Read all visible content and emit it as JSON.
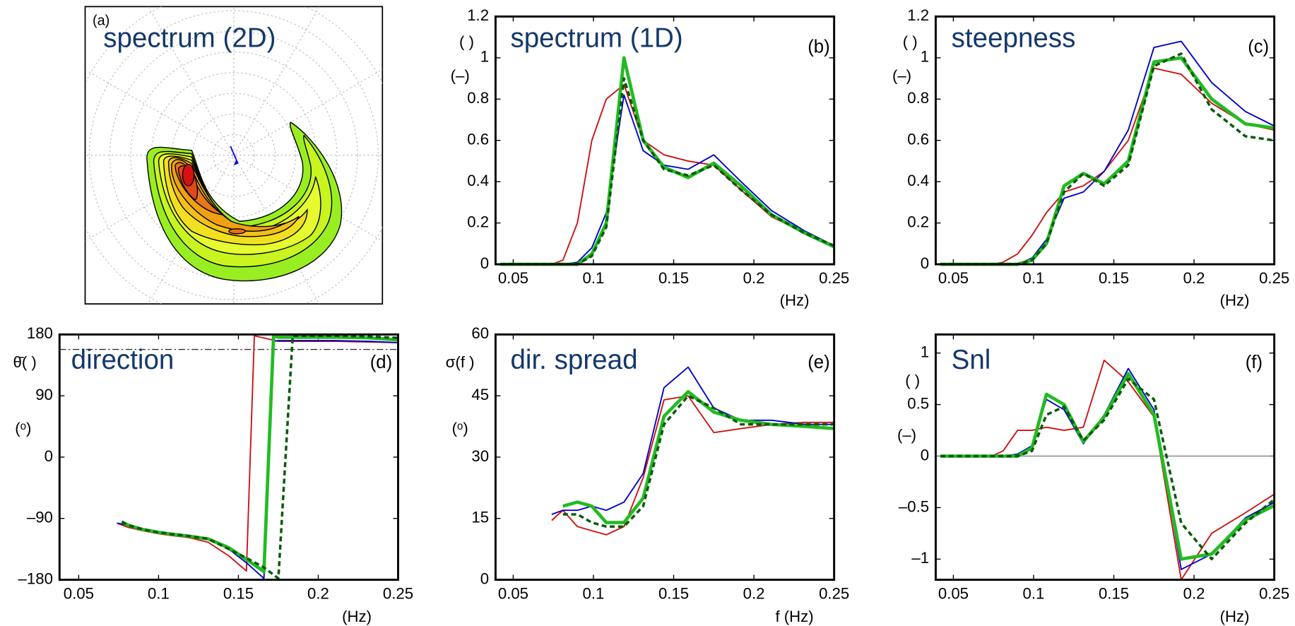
{
  "chart_data": [
    {
      "type": "contour",
      "title": "spectrum (2D)",
      "label": "(a)"
    },
    {
      "type": "line",
      "title": "spectrum (1D)",
      "annotation": "(b)",
      "ylabel": [
        "( )",
        "(–)"
      ],
      "xlabel": "(Hz)",
      "xlim": [
        0.039,
        0.25
      ],
      "xticks": [
        0.05,
        0.1,
        0.15,
        0.2,
        0.25
      ],
      "ylim": [
        0,
        1.2
      ],
      "yticks": [
        0,
        0.2,
        0.4,
        0.6,
        0.8,
        1,
        1.2
      ],
      "x": [
        0.042,
        0.046,
        0.051,
        0.056,
        0.061,
        0.067,
        0.074,
        0.081,
        0.09,
        0.099,
        0.108,
        0.119,
        0.131,
        0.144,
        0.159,
        0.175,
        0.192,
        0.211,
        0.232,
        0.25
      ],
      "series": [
        {
          "color": "#cc1111",
          "linewidth": 1.6,
          "linestyle": "solid",
          "values": [
            0,
            0,
            0,
            0,
            0,
            0,
            0,
            0.02,
            0.2,
            0.6,
            0.8,
            0.87,
            0.6,
            0.53,
            0.5,
            0.48,
            0.36,
            0.23,
            0.15,
            0.09
          ]
        },
        {
          "color": "#0000cc",
          "linewidth": 1.6,
          "linestyle": "solid",
          "values": [
            0,
            0,
            0,
            0,
            0,
            0,
            0,
            0,
            0.01,
            0.08,
            0.25,
            0.82,
            0.55,
            0.48,
            0.46,
            0.53,
            0.4,
            0.26,
            0.16,
            0.09
          ]
        },
        {
          "color": "#22bb22",
          "linewidth": 4,
          "linestyle": "solid",
          "values": [
            0,
            0,
            0,
            0,
            0,
            0,
            0,
            0,
            0,
            0.05,
            0.2,
            1,
            0.6,
            0.47,
            0.42,
            0.49,
            0.38,
            0.24,
            0.15,
            0.085
          ]
        },
        {
          "color": "#0a5a0a",
          "linewidth": 3,
          "linestyle": "dashed",
          "values": [
            0,
            0,
            0,
            0,
            0,
            0,
            0,
            0,
            0,
            0.04,
            0.18,
            0.9,
            0.6,
            0.46,
            0.43,
            0.48,
            0.36,
            0.24,
            0.15,
            0.09
          ]
        }
      ]
    },
    {
      "type": "line",
      "title": "steepness",
      "annotation": "(c)",
      "ylabel": [
        "( )",
        "(–)"
      ],
      "xlabel": "(Hz)",
      "xlim": [
        0.039,
        0.25
      ],
      "xticks": [
        0.05,
        0.1,
        0.15,
        0.2,
        0.25
      ],
      "ylim": [
        0,
        1.2
      ],
      "yticks": [
        0,
        0.2,
        0.4,
        0.6,
        0.8,
        1,
        1.2
      ],
      "x": [
        0.042,
        0.046,
        0.051,
        0.056,
        0.061,
        0.067,
        0.074,
        0.081,
        0.09,
        0.099,
        0.108,
        0.119,
        0.131,
        0.144,
        0.159,
        0.175,
        0.192,
        0.211,
        0.232,
        0.25
      ],
      "series": [
        {
          "color": "#cc1111",
          "linewidth": 1.6,
          "linestyle": "solid",
          "values": [
            0,
            0,
            0,
            0,
            0,
            0,
            0,
            0.01,
            0.05,
            0.14,
            0.25,
            0.35,
            0.38,
            0.45,
            0.6,
            0.95,
            0.92,
            0.78,
            0.68,
            0.65
          ]
        },
        {
          "color": "#0000cc",
          "linewidth": 1.6,
          "linestyle": "solid",
          "values": [
            0,
            0,
            0,
            0,
            0,
            0,
            0,
            0,
            0,
            0.03,
            0.12,
            0.32,
            0.35,
            0.45,
            0.65,
            1.05,
            1.08,
            0.88,
            0.74,
            0.67
          ]
        },
        {
          "color": "#22bb22",
          "linewidth": 4,
          "linestyle": "solid",
          "values": [
            0,
            0,
            0,
            0,
            0,
            0,
            0,
            0,
            0,
            0.02,
            0.1,
            0.38,
            0.44,
            0.39,
            0.5,
            0.98,
            1,
            0.8,
            0.68,
            0.66
          ]
        },
        {
          "color": "#0a5a0a",
          "linewidth": 3,
          "linestyle": "dashed",
          "values": [
            0,
            0,
            0,
            0,
            0,
            0,
            0,
            0,
            0,
            0.02,
            0.1,
            0.35,
            0.44,
            0.38,
            0.48,
            0.96,
            1.02,
            0.75,
            0.62,
            0.6
          ]
        }
      ]
    },
    {
      "type": "line",
      "title": "direction",
      "annotation": "(d)",
      "ylabel": [
        "θ̄( )",
        "(ᵒ)"
      ],
      "xlabel": "(Hz)",
      "xlim": [
        0.038,
        0.25
      ],
      "xticks": [
        0.05,
        0.1,
        0.15,
        0.2,
        0.25
      ],
      "ylim": [
        -180,
        180
      ],
      "yticks": [
        {
          "value": -180,
          "label": "–180"
        },
        {
          "value": -90,
          "label": "–90"
        },
        0,
        90,
        180
      ],
      "hline": 158,
      "hline_style": "dash-dot",
      "series": [
        {
          "color": "#cc1111",
          "linewidth": 1.6,
          "linestyle": "solid",
          "x": [
            0.074,
            0.081,
            0.09,
            0.099,
            0.108,
            0.119,
            0.131,
            0.144,
            0.155,
            0.16,
            0.175,
            0.192,
            0.211,
            0.232,
            0.25
          ],
          "values": [
            -97,
            -103,
            -108,
            -112,
            -115,
            -118,
            -125,
            -145,
            -167,
            178,
            170,
            170,
            170,
            169,
            168
          ]
        },
        {
          "color": "#0000cc",
          "linewidth": 1.6,
          "linestyle": "solid",
          "x": [
            0.074,
            0.081,
            0.09,
            0.099,
            0.108,
            0.119,
            0.131,
            0.144,
            0.155,
            0.166,
            0.172,
            0.175,
            0.192,
            0.211,
            0.232,
            0.25
          ],
          "values": [
            -97,
            -100,
            -106,
            -110,
            -113,
            -116,
            -120,
            -135,
            -155,
            -178,
            170,
            171,
            171,
            171,
            170,
            168
          ]
        },
        {
          "color": "#22bb22",
          "linewidth": 4,
          "linestyle": "solid",
          "x": [
            0.077,
            0.081,
            0.09,
            0.099,
            0.108,
            0.119,
            0.131,
            0.144,
            0.155,
            0.166,
            0.172,
            0.175,
            0.192,
            0.211,
            0.232,
            0.25
          ],
          "values": [
            -95,
            -100,
            -106,
            -110,
            -113,
            -116,
            -120,
            -133,
            -150,
            -168,
            178,
            176,
            176,
            176,
            175,
            172
          ]
        },
        {
          "color": "#0a5a0a",
          "linewidth": 3,
          "linestyle": "dashed",
          "x": [
            0.077,
            0.081,
            0.09,
            0.099,
            0.108,
            0.119,
            0.131,
            0.144,
            0.155,
            0.166,
            0.175,
            0.184,
            0.192,
            0.211,
            0.232,
            0.25
          ],
          "values": [
            -95,
            -100,
            -106,
            -110,
            -113,
            -116,
            -120,
            -135,
            -148,
            -162,
            -178,
            178,
            178,
            178,
            177,
            175
          ]
        }
      ]
    },
    {
      "type": "line",
      "title": "dir. spread",
      "annotation": "(e)",
      "ylabel": [
        "σ(f )",
        "(ᵒ)"
      ],
      "xlabel": "f (Hz)",
      "xlim": [
        0.039,
        0.25
      ],
      "xticks": [
        0.05,
        0.1,
        0.15,
        0.2,
        0.25
      ],
      "ylim": [
        0,
        60
      ],
      "yticks": [
        0,
        15,
        30,
        45,
        60
      ],
      "x": [
        0.074,
        0.081,
        0.09,
        0.099,
        0.108,
        0.119,
        0.131,
        0.144,
        0.159,
        0.175,
        0.192,
        0.211,
        0.232,
        0.25
      ],
      "series": [
        {
          "color": "#cc1111",
          "linewidth": 1.6,
          "linestyle": "solid",
          "values": [
            14.5,
            17,
            13,
            12,
            11,
            13,
            25,
            44,
            45,
            36,
            37,
            38,
            38.5,
            38.5
          ]
        },
        {
          "color": "#0000cc",
          "linewidth": 1.6,
          "linestyle": "solid",
          "values": [
            16,
            17,
            17,
            18,
            17,
            19,
            26,
            47,
            52,
            42,
            39,
            39,
            38,
            38
          ]
        },
        {
          "color": "#22bb22",
          "linewidth": 4,
          "linestyle": "solid",
          "values": [
            null,
            18,
            19,
            18,
            14,
            14,
            20,
            40,
            46,
            41,
            39,
            38,
            37.5,
            37
          ]
        },
        {
          "color": "#0a5a0a",
          "linewidth": 3,
          "linestyle": "dashed",
          "values": [
            null,
            16,
            16,
            14,
            13,
            13,
            18,
            38,
            45,
            42,
            38,
            38,
            38,
            38
          ]
        }
      ]
    },
    {
      "type": "line",
      "title": "Snl",
      "annotation": "(f)",
      "ylabel": [
        "( )",
        "(–)"
      ],
      "xlabel": "(Hz)",
      "xlim": [
        0.039,
        0.25
      ],
      "xticks": [
        0.05,
        0.1,
        0.15,
        0.2,
        0.25
      ],
      "ylim": [
        -1.2,
        1.18
      ],
      "yticks": [
        {
          "value": -1,
          "label": "–1"
        },
        {
          "value": -0.5,
          "label": "–0.5"
        },
        0,
        0.5,
        1
      ],
      "hline": 0,
      "hline_style": "solid",
      "x": [
        0.042,
        0.046,
        0.051,
        0.056,
        0.061,
        0.067,
        0.074,
        0.081,
        0.09,
        0.099,
        0.108,
        0.119,
        0.131,
        0.144,
        0.159,
        0.175,
        0.192,
        0.211,
        0.232,
        0.25
      ],
      "series": [
        {
          "color": "#cc1111",
          "linewidth": 1.6,
          "linestyle": "solid",
          "values": [
            0,
            0,
            0,
            0,
            0,
            0,
            0,
            0.05,
            0.25,
            0.25,
            0.28,
            0.25,
            0.28,
            0.93,
            0.72,
            0.38,
            -1.2,
            -0.75,
            -0.55,
            -0.37
          ]
        },
        {
          "color": "#0000cc",
          "linewidth": 1.6,
          "linestyle": "solid",
          "values": [
            0,
            0,
            0,
            0,
            0,
            0,
            0,
            0,
            0.02,
            0.1,
            0.55,
            0.45,
            0.12,
            0.4,
            0.85,
            0.45,
            -1.1,
            -0.95,
            -0.6,
            -0.45
          ]
        },
        {
          "color": "#22bb22",
          "linewidth": 4,
          "linestyle": "solid",
          "values": [
            0,
            0,
            0,
            0,
            0,
            0,
            0,
            0,
            0,
            0.08,
            0.6,
            0.5,
            0.14,
            0.38,
            0.8,
            0.4,
            -1,
            -0.95,
            -0.62,
            -0.48
          ]
        },
        {
          "color": "#0a5a0a",
          "linewidth": 3,
          "linestyle": "dashed",
          "values": [
            0,
            0,
            0,
            0,
            0,
            0,
            0,
            0,
            0,
            0.05,
            0.4,
            0.48,
            0.15,
            0.35,
            0.75,
            0.55,
            -0.65,
            -1,
            -0.65,
            -0.42
          ]
        }
      ]
    }
  ]
}
